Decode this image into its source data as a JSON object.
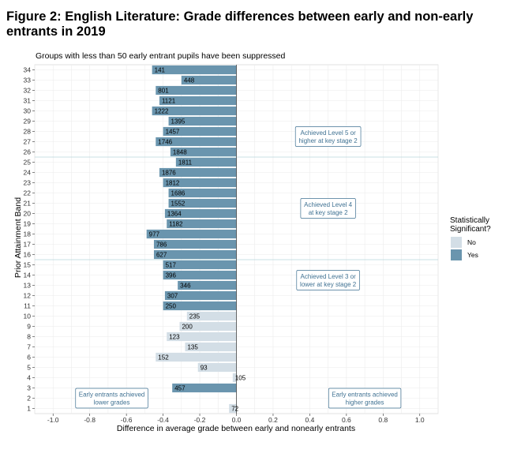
{
  "figure": {
    "title": "Figure 2: English Literature: Grade differences between early and non-early entrants in 2019"
  },
  "chart_data": {
    "type": "bar",
    "orientation": "horizontal",
    "subtitle": "Groups with less than 50 early entrant pupils have been suppressed",
    "xlabel": "Difference in average grade between early and nonearly entrants",
    "ylabel": "Prior Attainment Band",
    "xlim": [
      -1.1,
      1.1
    ],
    "x_ticks": [
      "-1.0",
      "-0.8",
      "-0.6",
      "-0.4",
      "-0.2",
      "0.0",
      "0.2",
      "0.4",
      "0.6",
      "0.8",
      "1.0"
    ],
    "x_tick_values": [
      -1.0,
      -0.8,
      -0.6,
      -0.4,
      -0.2,
      0.0,
      0.2,
      0.4,
      0.6,
      0.8,
      1.0
    ],
    "grid": true,
    "legend": {
      "title": "Statistically Significant?",
      "position": "right",
      "entries": [
        {
          "label": "No",
          "color": "#d3dee6"
        },
        {
          "label": "Yes",
          "color": "#6a95ae"
        }
      ]
    },
    "colors": {
      "significant": "#6a95ae",
      "not_significant": "#d3dee6",
      "annotation": "#3f7192",
      "divider": "#b9d6dc"
    },
    "bands": [
      {
        "band": "1",
        "value": -0.04,
        "n": "72",
        "significant": false
      },
      {
        "band": "2",
        "value": 0.0,
        "n": "",
        "significant": false
      },
      {
        "band": "3",
        "value": -0.35,
        "n": "457",
        "significant": true
      },
      {
        "band": "4",
        "value": -0.02,
        "n": "105",
        "significant": false
      },
      {
        "band": "5",
        "value": -0.21,
        "n": "93",
        "significant": false
      },
      {
        "band": "6",
        "value": -0.44,
        "n": "152",
        "significant": false
      },
      {
        "band": "7",
        "value": -0.28,
        "n": "135",
        "significant": false
      },
      {
        "band": "8",
        "value": -0.38,
        "n": "123",
        "significant": false
      },
      {
        "band": "9",
        "value": -0.31,
        "n": "200",
        "significant": false
      },
      {
        "band": "10",
        "value": -0.27,
        "n": "235",
        "significant": false
      },
      {
        "band": "11",
        "value": -0.4,
        "n": "250",
        "significant": true
      },
      {
        "band": "12",
        "value": -0.39,
        "n": "307",
        "significant": true
      },
      {
        "band": "13",
        "value": -0.32,
        "n": "346",
        "significant": true
      },
      {
        "band": "14",
        "value": -0.4,
        "n": "396",
        "significant": true
      },
      {
        "band": "15",
        "value": -0.4,
        "n": "517",
        "significant": true
      },
      {
        "band": "16",
        "value": -0.45,
        "n": "627",
        "significant": true
      },
      {
        "band": "17",
        "value": -0.45,
        "n": "786",
        "significant": true
      },
      {
        "band": "18",
        "value": -0.49,
        "n": "977",
        "significant": true
      },
      {
        "band": "19",
        "value": -0.38,
        "n": "1182",
        "significant": true
      },
      {
        "band": "20",
        "value": -0.39,
        "n": "1364",
        "significant": true
      },
      {
        "band": "21",
        "value": -0.37,
        "n": "1552",
        "significant": true
      },
      {
        "band": "22",
        "value": -0.37,
        "n": "1686",
        "significant": true
      },
      {
        "band": "23",
        "value": -0.4,
        "n": "1812",
        "significant": true
      },
      {
        "band": "24",
        "value": -0.42,
        "n": "1876",
        "significant": true
      },
      {
        "band": "25",
        "value": -0.33,
        "n": "1811",
        "significant": true
      },
      {
        "band": "26",
        "value": -0.36,
        "n": "1848",
        "significant": true
      },
      {
        "band": "27",
        "value": -0.44,
        "n": "1746",
        "significant": true
      },
      {
        "band": "28",
        "value": -0.4,
        "n": "1457",
        "significant": true
      },
      {
        "band": "29",
        "value": -0.37,
        "n": "1395",
        "significant": true
      },
      {
        "band": "30",
        "value": -0.46,
        "n": "1222",
        "significant": true
      },
      {
        "band": "31",
        "value": -0.42,
        "n": "1121",
        "significant": true
      },
      {
        "band": "32",
        "value": -0.44,
        "n": "801",
        "significant": true
      },
      {
        "band": "33",
        "value": -0.3,
        "n": "448",
        "significant": true
      },
      {
        "band": "34",
        "value": -0.46,
        "n": "141",
        "significant": true
      }
    ],
    "dividers": [
      15.5,
      25.5
    ],
    "annotations": [
      {
        "lines": [
          "Achieved Level 5 or",
          "higher at key stage 2"
        ],
        "x": 0.5,
        "y": 27.5
      },
      {
        "lines": [
          "Achieved Level 4",
          "at key stage 2"
        ],
        "x": 0.5,
        "y": 20.5
      },
      {
        "lines": [
          "Achieved Level 3 or",
          "lower at key stage 2"
        ],
        "x": 0.5,
        "y": 13.5
      },
      {
        "lines": [
          "Early entrants achieved",
          "lower grades"
        ],
        "x": -0.68,
        "y": 2.0
      },
      {
        "lines": [
          "Early entrants achieved",
          "higher grades"
        ],
        "x": 0.7,
        "y": 2.0
      }
    ]
  }
}
